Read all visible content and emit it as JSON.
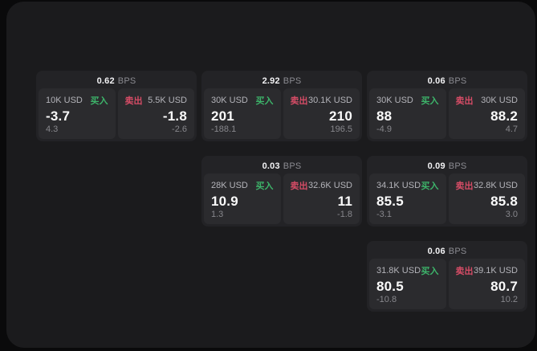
{
  "labels": {
    "bps_unit": "BPS",
    "buy": "买入",
    "sell": "卖出"
  },
  "colors": {
    "buy_accent": "#3db46a",
    "sell_accent": "#d64c66",
    "panel_bg": "#1b1b1d",
    "card_bg": "#232326",
    "tile_bg": "#2b2b2e"
  },
  "cards": [
    {
      "bps": "0.62",
      "buy": {
        "notional": "10K USD",
        "price": "-3.7",
        "change": "4.3"
      },
      "sell": {
        "notional": "5.5K USD",
        "price": "-1.8",
        "change": "-2.6"
      }
    },
    {
      "bps": "2.92",
      "buy": {
        "notional": "30K USD",
        "price": "201",
        "change": "-188.1"
      },
      "sell": {
        "notional": "30.1K USD",
        "price": "210",
        "change": "196.5"
      }
    },
    {
      "bps": "0.06",
      "buy": {
        "notional": "30K USD",
        "price": "88",
        "change": "-4.9"
      },
      "sell": {
        "notional": "30K USD",
        "price": "88.2",
        "change": "4.7"
      }
    },
    {
      "bps": "0.03",
      "buy": {
        "notional": "28K USD",
        "price": "10.9",
        "change": "1.3"
      },
      "sell": {
        "notional": "32.6K USD",
        "price": "11",
        "change": "-1.8"
      }
    },
    {
      "bps": "0.09",
      "buy": {
        "notional": "34.1K USD",
        "price": "85.5",
        "change": "-3.1"
      },
      "sell": {
        "notional": "32.8K USD",
        "price": "85.8",
        "change": "3.0"
      }
    },
    {
      "bps": "0.06",
      "buy": {
        "notional": "31.8K USD",
        "price": "80.5",
        "change": "-10.8"
      },
      "sell": {
        "notional": "39.1K USD",
        "price": "80.7",
        "change": "10.2"
      }
    }
  ]
}
